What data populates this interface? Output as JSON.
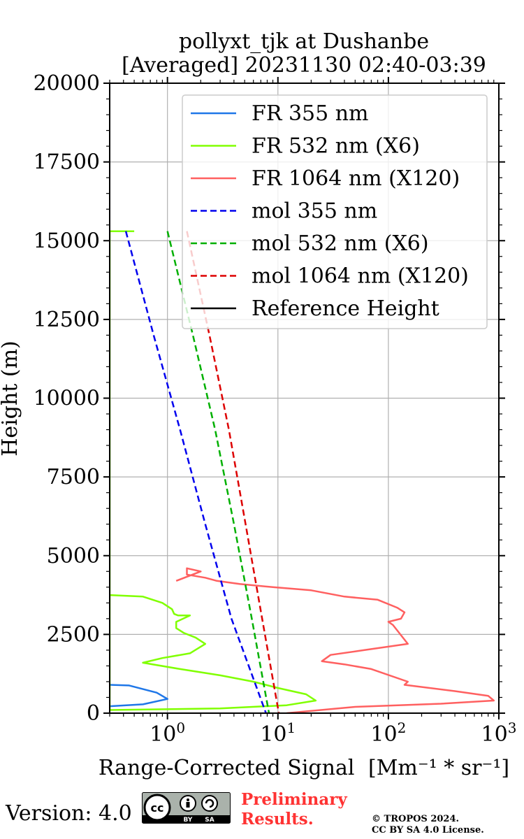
{
  "chart_data": {
    "type": "line",
    "title_line1": "pollyxt_tjk at Dushanbe",
    "title_line2": "[Averaged] 20231130 02:40-03:39",
    "xlabel": "Range-Corrected Signal",
    "xlabel_unit": "[Mm⁻¹ * sr⁻¹]",
    "ylabel": "Height (m)",
    "xscale": "log",
    "xlim": [
      0.3,
      1000
    ],
    "ylim": [
      0,
      20000
    ],
    "xticks": [
      {
        "value": 1,
        "label_base": "10",
        "label_exp": "0"
      },
      {
        "value": 10,
        "label_base": "10",
        "label_exp": "1"
      },
      {
        "value": 100,
        "label_base": "10",
        "label_exp": "2"
      },
      {
        "value": 1000,
        "label_base": "10",
        "label_exp": "3"
      }
    ],
    "yticks": [
      "0",
      "2500",
      "5000",
      "7500",
      "10000",
      "12500",
      "15000",
      "17500",
      "20000"
    ],
    "grid": true,
    "legend_position": "top-right",
    "series": [
      {
        "name": "FR 355 nm",
        "color": "#1f77e8",
        "style": "solid",
        "x": [
          0.3,
          0.45,
          0.8,
          1.0,
          0.6,
          0.3
        ],
        "y": [
          900,
          880,
          650,
          450,
          280,
          220
        ]
      },
      {
        "name": "FR 532 nm (X6)",
        "color": "#80ff00",
        "style": "solid",
        "x": [
          0.3,
          0.6,
          0.9,
          1.1,
          1.15,
          1.25,
          1.6,
          1.2,
          1.2,
          1.4,
          1.8,
          2.2,
          1.6,
          0.9,
          0.6,
          1.3,
          3.0,
          6.0,
          10.0,
          18.0,
          22.0,
          12.0,
          3.0,
          0.3,
          0.3,
          0.5
        ],
        "y": [
          3750,
          3700,
          3500,
          3300,
          3150,
          3100,
          3100,
          2900,
          2700,
          2550,
          2400,
          2200,
          1900,
          1750,
          1600,
          1400,
          1200,
          1000,
          800,
          600,
          400,
          250,
          150,
          100,
          15300,
          15300
        ]
      },
      {
        "name": "FR 1064 nm (X120)",
        "color": "#ff6060",
        "style": "solid",
        "x": [
          1.2,
          2.0,
          1.5,
          1.5,
          2.2,
          2.8,
          4.5,
          9.0,
          20.0,
          40.0,
          80.0,
          120.0,
          140.0,
          130.0,
          100.0,
          110.0,
          150.0,
          60.0,
          30.0,
          25.0,
          40.0,
          70.0,
          150.0,
          140.0,
          400.0,
          800.0,
          900.0,
          300.0,
          50.0,
          12.0
        ],
        "y": [
          4200,
          4500,
          4600,
          4400,
          4300,
          4200,
          4100,
          4000,
          3900,
          3700,
          3600,
          3350,
          3200,
          3000,
          2900,
          2800,
          2200,
          2000,
          1850,
          1650,
          1550,
          1400,
          1000,
          900,
          700,
          550,
          400,
          300,
          200,
          0
        ]
      },
      {
        "name": "mol 355 nm",
        "color": "#0000ee",
        "style": "dashed",
        "x": [
          0.42,
          0.75,
          1.3,
          2.2,
          3.8,
          7.8
        ],
        "y": [
          15300,
          12000,
          9000,
          6000,
          3000,
          0
        ]
      },
      {
        "name": "mol 532 nm (X6)",
        "color": "#00b000",
        "style": "dashed",
        "x": [
          1.0,
          1.7,
          2.7,
          4.0,
          5.8,
          8.3
        ],
        "y": [
          15300,
          12000,
          9000,
          6000,
          3000,
          0
        ]
      },
      {
        "name": "mol 1064 nm (X120)",
        "color": "#dd0000",
        "style": "dashed",
        "x": [
          1.5,
          2.4,
          3.6,
          5.1,
          7.2,
          10.2
        ],
        "y": [
          15300,
          12000,
          9000,
          6000,
          3000,
          0
        ]
      },
      {
        "name": "Reference Height",
        "color": "#000000",
        "style": "solid",
        "x": [],
        "y": []
      }
    ]
  },
  "footer": {
    "version": "Version: 4.0",
    "preliminary_line1": "Preliminary",
    "preliminary_line2": "Results.",
    "copyright_line1": "© TROPOS 2024.",
    "copyright_line2": "CC BY SA 4.0 License.",
    "license_badge": {
      "cc": "cc",
      "by": "BY",
      "sa": "SA"
    }
  }
}
